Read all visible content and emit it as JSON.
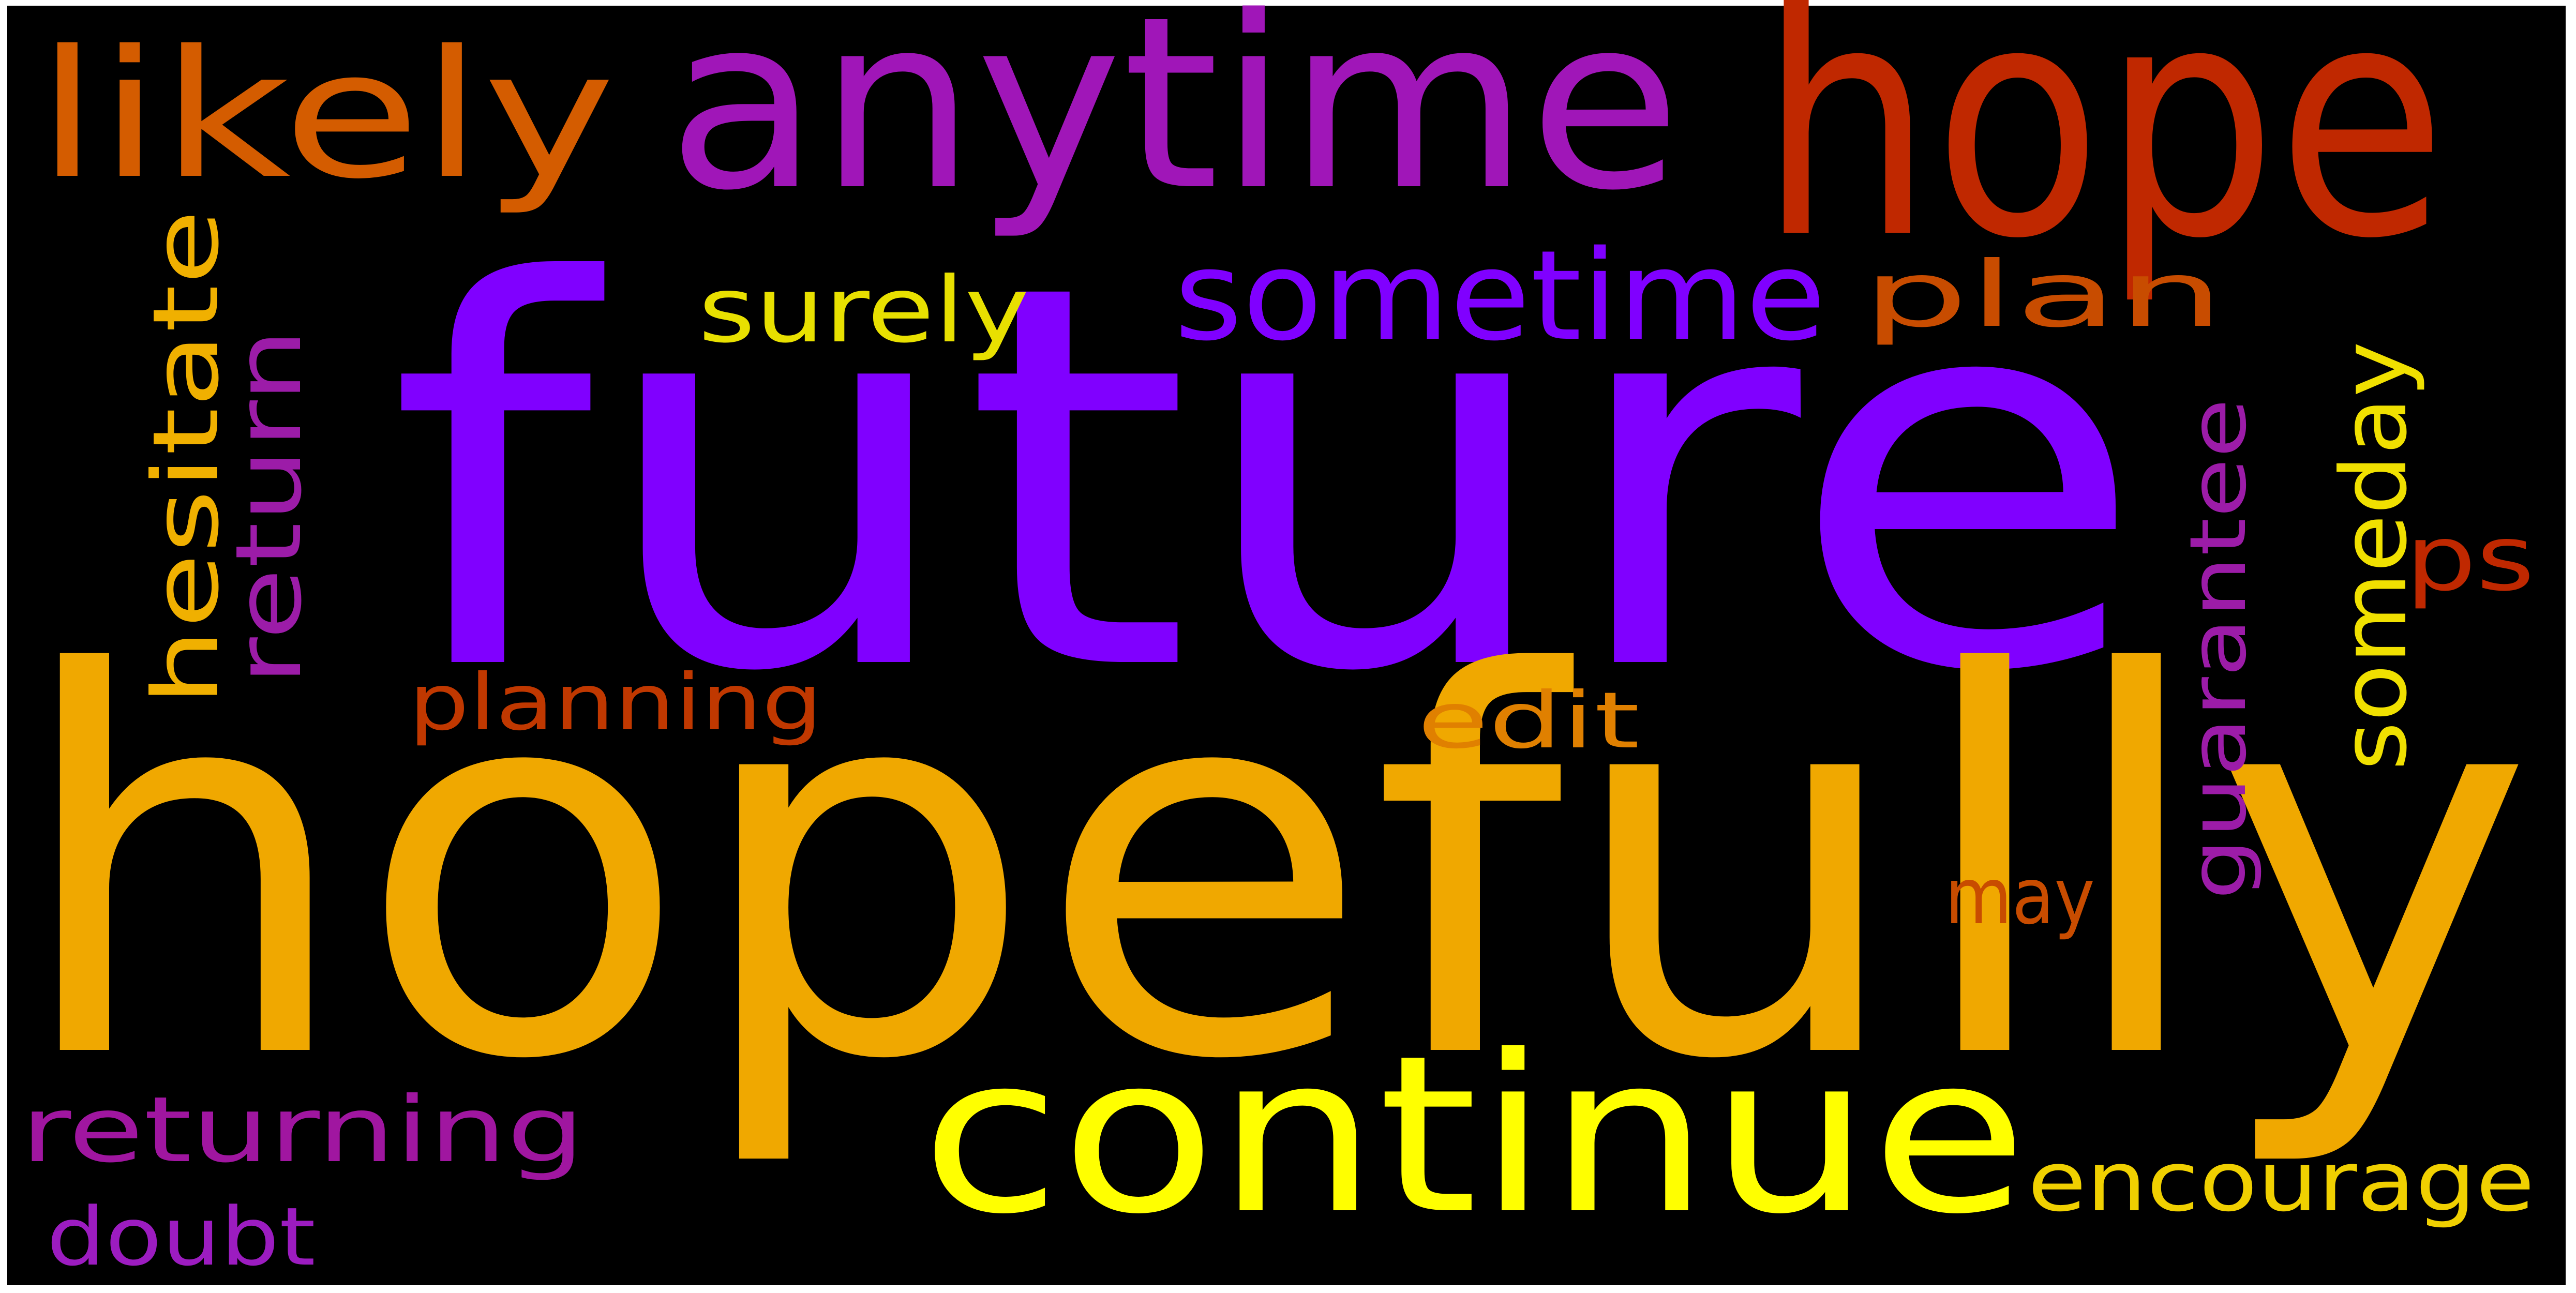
{
  "word_cloud": {
    "background_color": "#000000",
    "words": [
      {
        "text": "future",
        "color": "#8000ff"
      },
      {
        "text": "hopefully",
        "color": "#f0a800"
      },
      {
        "text": "hope",
        "color": "#c02800"
      },
      {
        "text": "anytime",
        "color": "#a016b8"
      },
      {
        "text": "likely",
        "color": "#d45c00"
      },
      {
        "text": "continue",
        "color": "#ffff00"
      },
      {
        "text": "sometime",
        "color": "#8000ff"
      },
      {
        "text": "surely",
        "color": "#e8e000"
      },
      {
        "text": "plan",
        "color": "#c84c00"
      },
      {
        "text": "hesitate",
        "color": "#f0b000"
      },
      {
        "text": "return",
        "color": "#9c1ca8"
      },
      {
        "text": "guarantee",
        "color": "#9c1ca8"
      },
      {
        "text": "someday",
        "color": "#f0e000"
      },
      {
        "text": "ps",
        "color": "#c02800"
      },
      {
        "text": "planning",
        "color": "#c03800"
      },
      {
        "text": "edit",
        "color": "#e08000"
      },
      {
        "text": "may",
        "color": "#c84c00"
      },
      {
        "text": "returning",
        "color": "#a016a0"
      },
      {
        "text": "encourage",
        "color": "#f0d000"
      },
      {
        "text": "doubt",
        "color": "#9c1cc0"
      }
    ]
  }
}
